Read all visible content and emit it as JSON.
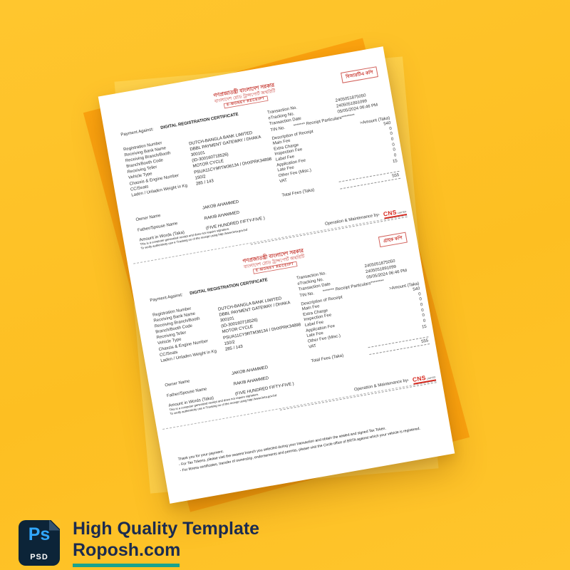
{
  "stamps": {
    "copy1": "বিআরটিএ কপি",
    "copy2": "গ্রাহক কপি"
  },
  "receipt": {
    "header": {
      "line1": "গণপ্রজাতন্ত্রী বাংলাদেশ সরকার",
      "line2": "বাংলাদেশ রোড ট্রান্সপোর্ট অথরিটি",
      "line3": "E-MONEY RECEIPT"
    },
    "transaction": [
      {
        "label": "Transaction No.",
        "value": "2405051875050"
      },
      {
        "label": "eTracking No.",
        "value": "2405051891099"
      },
      {
        "label": "Transaction Date",
        "value": "05/05/2024 06:46 PM"
      }
    ],
    "tin_label": "TIN No.",
    "payment_against_label": "Payment Against:",
    "payment_against_value": "DIGITAL REGISTRATION CERTIFICATE",
    "details": [
      {
        "label": "Registration Number",
        "value": ""
      },
      {
        "label": "Receiving Bank Name",
        "value": "DUTCH-BANGLA BANK LIMITED"
      },
      {
        "label": "Receiving Branch/Booth",
        "value": "DBBL PAYMENT GATEWAY / DHAKA"
      },
      {
        "label": "Branch/Booth Code",
        "value": "300101"
      },
      {
        "label": "Receiving Teller",
        "value": "(ID-300160718526)"
      },
      {
        "label": "Vehicle Type",
        "value": "MOTOR CYCLE"
      },
      {
        "label": "Chassis & Engine Number",
        "value": "PSUA11CY9RTM36134 / DHXPRK34898"
      },
      {
        "label": "CC/Seats",
        "value": "150/2"
      },
      {
        "label": "Laden / Unladen Weight in Kg",
        "value": "285 / 143"
      }
    ],
    "particulars": {
      "title": "******* Receipt Particulars********",
      "col_label": "Description of Receipt",
      "col_amount": ">Amount (Taka)",
      "rows": [
        {
          "label": "Main Fee",
          "value": "540"
        },
        {
          "label": "Extra Charge",
          "value": "0"
        },
        {
          "label": "Inspection Fee",
          "value": "0"
        },
        {
          "label": "Label Fee",
          "value": "0"
        },
        {
          "label": "Application Fee",
          "value": "0"
        },
        {
          "label": "Late Fee",
          "value": "0"
        },
        {
          "label": "Other Fee (Misc.)",
          "value": "0"
        },
        {
          "label": "VAT",
          "value": "15"
        }
      ],
      "total_label": "Total Fees (Taka)",
      "total_value": "555"
    },
    "owner": [
      {
        "label": "Owner Name",
        "value": "JAKOB AHAMMED"
      },
      {
        "label": "Father/Spouse Name",
        "value": "RAKIB AHAMMED"
      },
      {
        "label": "Amount in Words (Taka)",
        "value": "(FIVE HUNDRED FIFTY-FIVE )"
      }
    ],
    "om_label": "Operation & Maintenance by-",
    "cns": {
      "name": "CNS",
      "suffix": "LIMITED"
    },
    "fine_print": [
      "This is a computer generated receipt and does not require signature.",
      "To verify authenticity use e-Tracking no of the receipt using http://www.brta.gov.bd"
    ]
  },
  "footer_notes": [
    "Thank you for your payment.",
    "- For Tax Tokens, please visit the nearest branch you selected during your transaction and obtain the sealed and signed Tax Token.",
    "- For fitness certificates, transfer of ownership, endorsements and permits, please visit the Circle office of BRTA against which your vehicle is registered."
  ],
  "branding": {
    "ps": "Ps",
    "psd": "PSD",
    "line1": "High Quality Template",
    "line2": "Roposh.com"
  },
  "colors": {
    "background_yellow": "#fdc228",
    "accent_orange": "#fca30f",
    "accent_light": "#ffd24a",
    "receipt_red": "#c8403a",
    "cns_red": "#d6281e",
    "brand_navy": "#1b2b50",
    "ps_blue": "#31a8ff",
    "underline_teal": "#1aa38e"
  }
}
